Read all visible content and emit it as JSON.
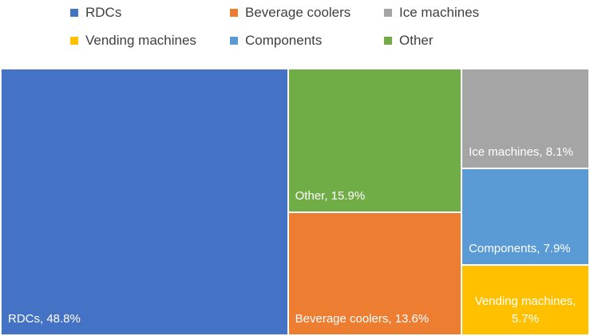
{
  "chart_data": {
    "type": "treemap",
    "categories": [
      "RDCs",
      "Beverage coolers",
      "Ice machines",
      "Vending machines",
      "Components",
      "Other"
    ],
    "values": [
      48.8,
      13.6,
      8.1,
      5.7,
      7.9,
      15.9
    ],
    "value_labels": [
      "RDCs, 48.8%",
      "Beverage coolers, 13.6%",
      "Ice machines, 8.1%",
      "Vending machines, 5.7%",
      "Components, 7.9%",
      "Other, 15.9%"
    ],
    "colors": [
      "#4472c4",
      "#ed7d31",
      "#a5a5a5",
      "#ffc000",
      "#5b9bd5",
      "#70ad47"
    ],
    "legend": "top"
  }
}
